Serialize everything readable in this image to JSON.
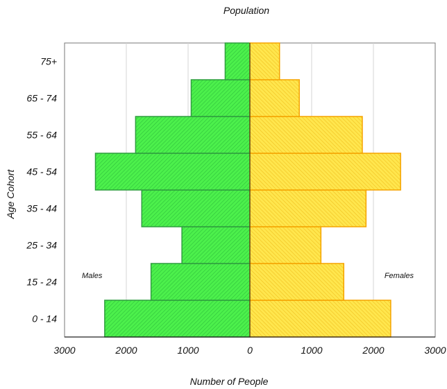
{
  "chart_data": {
    "type": "bar",
    "orientation": "horizontal",
    "layout": "population-pyramid",
    "title": "Population",
    "xlabel": "Number of People",
    "ylabel": "Age Cohort",
    "categories": [
      "0 - 14",
      "15 - 24",
      "25 - 34",
      "35 - 44",
      "45 - 54",
      "55 - 64",
      "65 - 74",
      "75+"
    ],
    "series": [
      {
        "name": "Males",
        "side": "left",
        "color": "#44ee44",
        "edge": "#2e9e3e",
        "values": [
          2350,
          1600,
          1100,
          1750,
          2500,
          1850,
          950,
          400
        ]
      },
      {
        "name": "Females",
        "side": "right",
        "color": "#ffe24a",
        "edge": "#f5a300",
        "values": [
          2280,
          1520,
          1150,
          1880,
          2440,
          1820,
          800,
          480
        ]
      }
    ],
    "xlim": [
      -3000,
      3000
    ],
    "x_ticks": [
      "3000",
      "2000",
      "1000",
      "0",
      "1000",
      "2000",
      "3000"
    ],
    "grid": true,
    "annotations": {
      "left": "Males",
      "right": "Females"
    }
  }
}
